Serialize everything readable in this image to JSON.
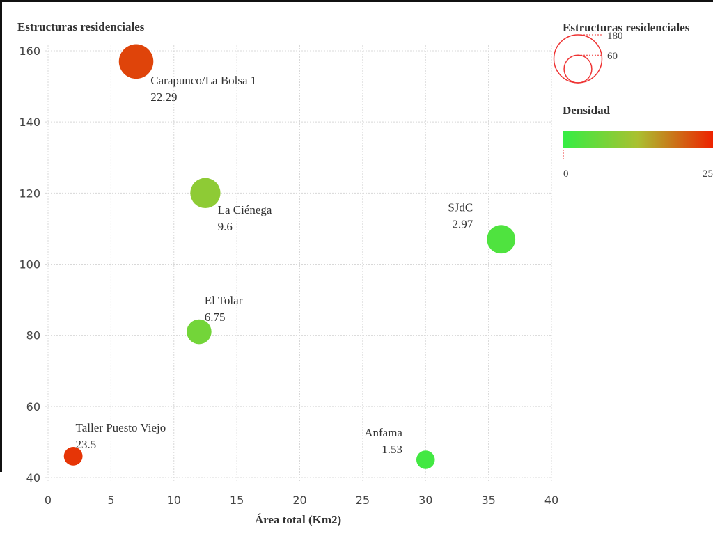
{
  "chart_data": {
    "type": "scatter",
    "title": "Estructuras residenciales",
    "xlabel": "Área total (Km2)",
    "ylabel": "",
    "xlim": [
      0,
      40
    ],
    "ylim": [
      40,
      160
    ],
    "xticks": [
      0,
      5,
      10,
      15,
      20,
      25,
      30,
      35,
      40
    ],
    "yticks": [
      40,
      60,
      80,
      100,
      120,
      140,
      160
    ],
    "grid": true,
    "points": [
      {
        "name": "Carapunco/La Bolsa 1",
        "density": "22.29",
        "x": 7,
        "y": 157,
        "d": 22.29,
        "label_side": "right-below"
      },
      {
        "name": "La Ciénega",
        "density": "9.6",
        "x": 12.5,
        "y": 120,
        "d": 9.6,
        "label_side": "right-below"
      },
      {
        "name": "SJdC",
        "density": "2.97",
        "x": 36,
        "y": 107,
        "d": 2.97,
        "label_side": "left-above"
      },
      {
        "name": "El Tolar",
        "density": "6.75",
        "x": 12,
        "y": 81,
        "d": 6.75,
        "label_side": "right-above"
      },
      {
        "name": "Taller Puesto Viejo",
        "density": "23.5",
        "x": 2,
        "y": 46,
        "d": 23.5,
        "label_side": "right-above"
      },
      {
        "name": "Anfama",
        "density": "1.53",
        "x": 30,
        "y": 45,
        "d": 1.53,
        "label_side": "left-above"
      }
    ],
    "legend": {
      "size_title": "Estructuras residenciales",
      "size_values": [
        "180",
        "60"
      ],
      "color_title": "Densidad",
      "color_min": "0",
      "color_max": "25",
      "color_from": "#33ee44",
      "color_mid": "#aac030",
      "color_to": "#ee2200"
    }
  }
}
